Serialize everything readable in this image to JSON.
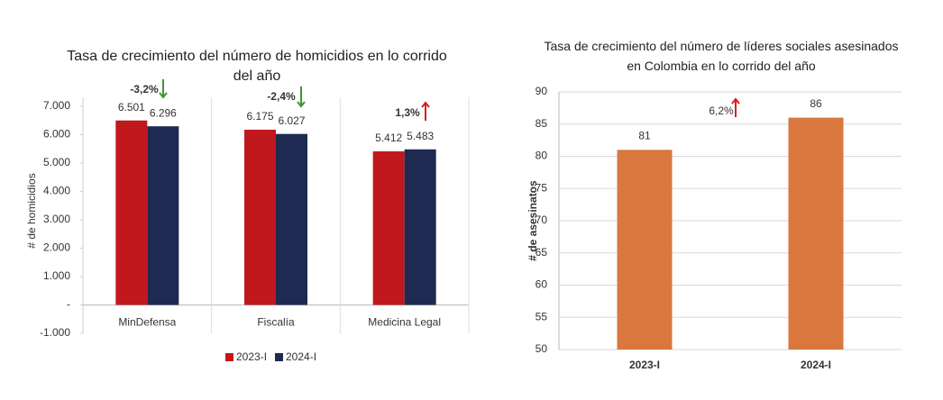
{
  "chart_data": [
    {
      "type": "bar",
      "title": "Tasa de crecimiento del número de homicidios en lo corrido del año",
      "y_label": "# de homicidios",
      "categories": [
        "MinDefensa",
        "Fiscalía",
        "Medicina Legal"
      ],
      "series": [
        {
          "name": "2023-I",
          "color": "#c0181c",
          "values": [
            6501,
            6175,
            5412
          ],
          "value_labels": [
            "6.501",
            "6.175",
            "5.412"
          ]
        },
        {
          "name": "2024-I",
          "color": "#1f2a52",
          "values": [
            6296,
            6027,
            5483
          ],
          "value_labels": [
            "6.296",
            "6.027",
            "5.483"
          ]
        }
      ],
      "ylim": [
        -1000,
        7000
      ],
      "yticks": [
        {
          "value": -1000,
          "label": "-1.000"
        },
        {
          "value": 0,
          "label": "-"
        },
        {
          "value": 1000,
          "label": "1.000"
        },
        {
          "value": 2000,
          "label": "2.000"
        },
        {
          "value": 3000,
          "label": "3.000"
        },
        {
          "value": 4000,
          "label": "4.000"
        },
        {
          "value": 5000,
          "label": "5.000"
        },
        {
          "value": 6000,
          "label": "6.000"
        },
        {
          "value": 7000,
          "label": "7.000"
        }
      ],
      "annotations": [
        "-3,2%",
        "-2,4%",
        "1,3%"
      ],
      "legend": "bottom"
    },
    {
      "type": "bar",
      "title": "Tasa de crecimiento del número de líderes sociales asesinados en Colombia en lo corrido del año",
      "y_label": "# de asesinatos",
      "categories": [
        "2023-I",
        "2024-I"
      ],
      "values": [
        81,
        86
      ],
      "color": "#d9773f",
      "ylim": [
        50,
        90
      ],
      "yticks": [
        50,
        55,
        60,
        65,
        70,
        75,
        80,
        85,
        90
      ],
      "grid": true,
      "annotations": [
        "6,2%"
      ]
    }
  ]
}
